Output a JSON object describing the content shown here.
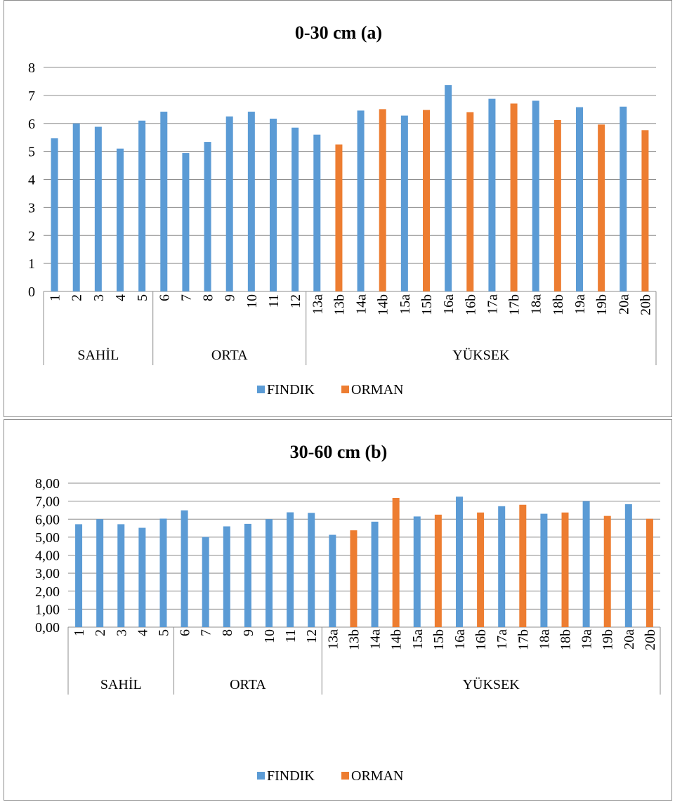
{
  "colors": {
    "findik": "#5B9BD5",
    "orman": "#ED7D31",
    "grid": "#8c8c8c"
  },
  "chart_data": [
    {
      "type": "bar",
      "title": "0-30  cm  (a)",
      "ylim": [
        0,
        8
      ],
      "yticks": [
        "0",
        "1",
        "2",
        "3",
        "4",
        "5",
        "6",
        "7",
        "8"
      ],
      "grid": true,
      "legend_position": "bottom",
      "categories": [
        "1",
        "2",
        "3",
        "4",
        "5",
        "6",
        "7",
        "8",
        "9",
        "10",
        "11",
        "12",
        "13a",
        "13b",
        "14a",
        "14b",
        "15a",
        "15b",
        "16a",
        "16b",
        "17a",
        "17b",
        "18a",
        "18b",
        "19a",
        "19b",
        "20a",
        "20b"
      ],
      "groups": [
        {
          "name": "SAHİL",
          "count": 5
        },
        {
          "name": "ORTA",
          "count": 7
        },
        {
          "name": "YÜKSEK",
          "count": 16
        }
      ],
      "series": [
        {
          "name": "FINDIK",
          "values": [
            5.47,
            6.0,
            5.88,
            5.1,
            6.1,
            6.42,
            4.94,
            5.34,
            6.25,
            6.42,
            6.17,
            5.85,
            5.6,
            null,
            6.46,
            null,
            6.28,
            null,
            7.37,
            null,
            6.88,
            null,
            6.81,
            null,
            6.58,
            null,
            6.6,
            null
          ]
        },
        {
          "name": "ORMAN",
          "values": [
            null,
            null,
            null,
            null,
            null,
            null,
            null,
            null,
            null,
            null,
            null,
            null,
            null,
            5.25,
            null,
            6.51,
            null,
            6.48,
            null,
            6.4,
            null,
            6.71,
            null,
            6.12,
            null,
            5.96,
            null,
            5.76
          ]
        }
      ]
    },
    {
      "type": "bar",
      "title": "30-60  cm  (b)",
      "ylim": [
        0,
        8
      ],
      "yticks": [
        "0,00",
        "1,00",
        "2,00",
        "3,00",
        "4,00",
        "5,00",
        "6,00",
        "7,00",
        "8,00"
      ],
      "grid": true,
      "legend_position": "bottom",
      "categories": [
        "1",
        "2",
        "3",
        "4",
        "5",
        "6",
        "7",
        "8",
        "9",
        "10",
        "11",
        "12",
        "13a",
        "13b",
        "14a",
        "14b",
        "15a",
        "15b",
        "16a",
        "16b",
        "17a",
        "17b",
        "18a",
        "18b",
        "19a",
        "19b",
        "20a",
        "20b"
      ],
      "groups": [
        {
          "name": "SAHİL",
          "count": 5
        },
        {
          "name": "ORTA",
          "count": 7
        },
        {
          "name": "YÜKSEK",
          "count": 16
        }
      ],
      "series": [
        {
          "name": "FINDIK",
          "values": [
            5.72,
            6.0,
            5.72,
            5.52,
            6.03,
            6.49,
            5.01,
            5.6,
            5.74,
            6.0,
            6.38,
            6.35,
            5.13,
            null,
            5.86,
            null,
            6.15,
            null,
            7.25,
            null,
            6.72,
            null,
            6.3,
            null,
            7.0,
            null,
            6.83,
            null
          ]
        },
        {
          "name": "ORMAN",
          "values": [
            null,
            null,
            null,
            null,
            null,
            null,
            null,
            null,
            null,
            null,
            null,
            null,
            null,
            5.38,
            null,
            7.18,
            null,
            6.25,
            null,
            6.37,
            null,
            6.8,
            null,
            6.37,
            null,
            6.18,
            null,
            6.02
          ]
        }
      ]
    }
  ]
}
